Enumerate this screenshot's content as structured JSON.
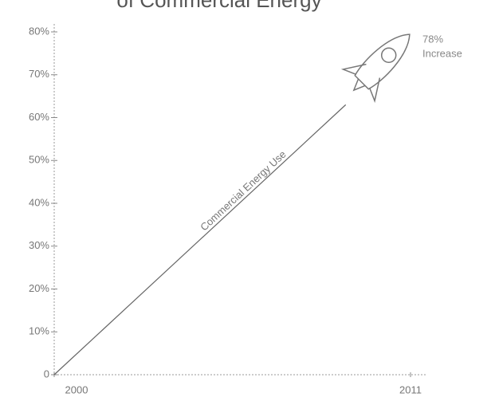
{
  "chart_data": {
    "type": "line",
    "title": "of Commercial Energy",
    "x": [
      2000,
      2009
    ],
    "values": [
      0,
      63
    ],
    "color": "#666",
    "xlim": [
      2000,
      2011
    ],
    "xticks": [
      2000,
      2011
    ],
    "ylim": [
      0,
      80
    ],
    "yticks": [
      0,
      {
        "value": 10,
        "label": "10%"
      },
      {
        "value": 20,
        "label": "20%"
      },
      {
        "value": 30,
        "label": "30%"
      },
      {
        "value": 40,
        "label": "40%"
      },
      {
        "value": 50,
        "label": "50%"
      },
      {
        "value": 60,
        "label": "60%"
      },
      {
        "value": 70,
        "label": "70%"
      },
      {
        "value": 80,
        "label": "80%"
      }
    ],
    "annotations": [
      "78%",
      "Increase",
      "Commercial Energy Use"
    ]
  }
}
